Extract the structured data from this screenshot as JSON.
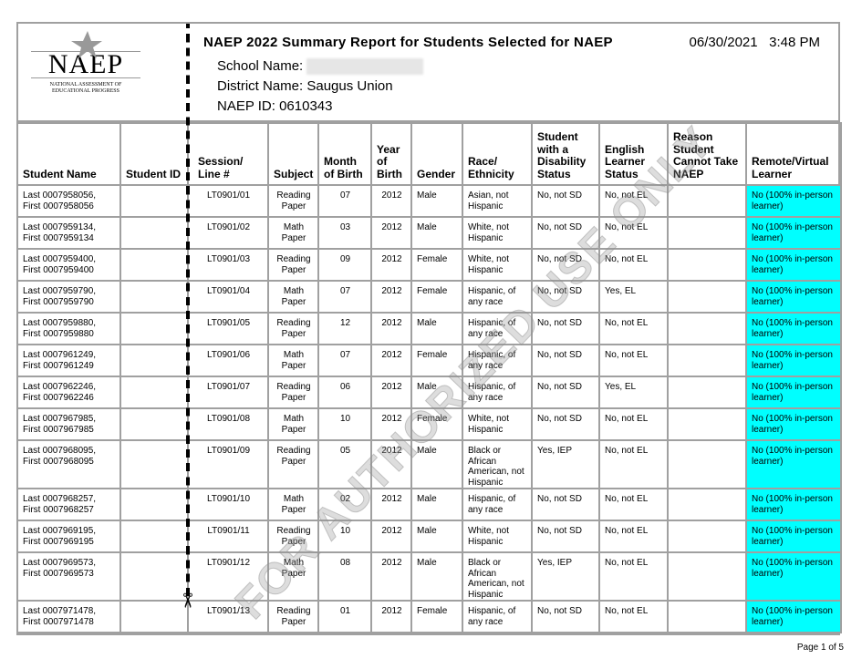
{
  "header": {
    "logo_text": "NAEP",
    "logo_subtitle": "NATIONAL ASSESSMENT OF EDUCATIONAL PROGRESS",
    "title": "NAEP 2022 Summary  Report for Students Selected for NAEP",
    "date": "06/30/2021",
    "time": "3:48 PM",
    "school_label": "School Name:",
    "district_label": "District Name:",
    "district_value": "Saugus Union",
    "naep_id_label": "NAEP ID:",
    "naep_id_value": "0610343"
  },
  "columns": [
    "Student Name",
    "Student ID",
    "Session/ Line #",
    "Subject",
    "Month of Birth",
    "Year of Birth",
    "Gender",
    "Race/ Ethnicity",
    "Student with a Disability Status",
    "English Learner Status",
    "Reason Student Cannot Take NAEP",
    "Remote/Virtual Learner"
  ],
  "rows": [
    [
      "Last 0007958056, First 0007958056",
      "",
      "LT0901/01",
      "Reading Paper",
      "07",
      "2012",
      "Male",
      "Asian, not Hispanic",
      "No, not SD",
      "No, not EL",
      "",
      "No (100% in-person learner)"
    ],
    [
      "Last 0007959134, First 0007959134",
      "",
      "LT0901/02",
      "Math Paper",
      "03",
      "2012",
      "Male",
      "White, not Hispanic",
      "No, not SD",
      "No, not EL",
      "",
      "No (100% in-person learner)"
    ],
    [
      "Last 0007959400, First 0007959400",
      "",
      "LT0901/03",
      "Reading Paper",
      "09",
      "2012",
      "Female",
      "White, not Hispanic",
      "No, not SD",
      "No, not EL",
      "",
      "No (100% in-person learner)"
    ],
    [
      "Last 0007959790, First 0007959790",
      "",
      "LT0901/04",
      "Math Paper",
      "07",
      "2012",
      "Female",
      "Hispanic, of any race",
      "No, not SD",
      "Yes, EL",
      "",
      "No (100% in-person learner)"
    ],
    [
      "Last 0007959880, First 0007959880",
      "",
      "LT0901/05",
      "Reading Paper",
      "12",
      "2012",
      "Male",
      "Hispanic, of any race",
      "No, not SD",
      "No, not EL",
      "",
      "No (100% in-person learner)"
    ],
    [
      "Last 0007961249, First 0007961249",
      "",
      "LT0901/06",
      "Math Paper",
      "07",
      "2012",
      "Female",
      "Hispanic, of any race",
      "No, not SD",
      "No, not EL",
      "",
      "No (100% in-person learner)"
    ],
    [
      "Last 0007962246, First 0007962246",
      "",
      "LT0901/07",
      "Reading Paper",
      "06",
      "2012",
      "Male",
      "Hispanic, of any race",
      "No, not SD",
      "Yes, EL",
      "",
      "No (100% in-person learner)"
    ],
    [
      "Last 0007967985, First 0007967985",
      "",
      "LT0901/08",
      "Math Paper",
      "10",
      "2012",
      "Female",
      "White, not Hispanic",
      "No, not SD",
      "No, not EL",
      "",
      "No (100% in-person learner)"
    ],
    [
      "Last 0007968095, First 0007968095",
      "",
      "LT0901/09",
      "Reading Paper",
      "05",
      "2012",
      "Male",
      "Black or African American, not Hispanic",
      "Yes, IEP",
      "No, not EL",
      "",
      "No (100% in-person learner)"
    ],
    [
      "Last 0007968257, First 0007968257",
      "",
      "LT0901/10",
      "Math Paper",
      "02",
      "2012",
      "Male",
      "Hispanic, of any race",
      "No, not SD",
      "No, not EL",
      "",
      "No (100% in-person learner)"
    ],
    [
      "Last 0007969195, First 0007969195",
      "",
      "LT0901/11",
      "Reading Paper",
      "10",
      "2012",
      "Male",
      "White, not Hispanic",
      "No, not SD",
      "No, not EL",
      "",
      "No (100% in-person learner)"
    ],
    [
      "Last 0007969573, First 0007969573",
      "",
      "LT0901/12",
      "Math Paper",
      "08",
      "2012",
      "Male",
      "Black or African American, not Hispanic",
      "Yes, IEP",
      "No, not EL",
      "",
      "No (100% in-person learner)"
    ],
    [
      "Last 0007971478, First 0007971478",
      "",
      "LT0901/13",
      "Reading Paper",
      "01",
      "2012",
      "Female",
      "Hispanic, of any race",
      "No, not SD",
      "No, not EL",
      "",
      "No (100% in-person learner)"
    ]
  ],
  "watermark": "FOR AUTHORIZED USE ONLY",
  "footer": {
    "page": "Page 1 of 5"
  },
  "colors": {
    "remote_highlight": "#00ffff",
    "border": "#a0a0a0"
  }
}
